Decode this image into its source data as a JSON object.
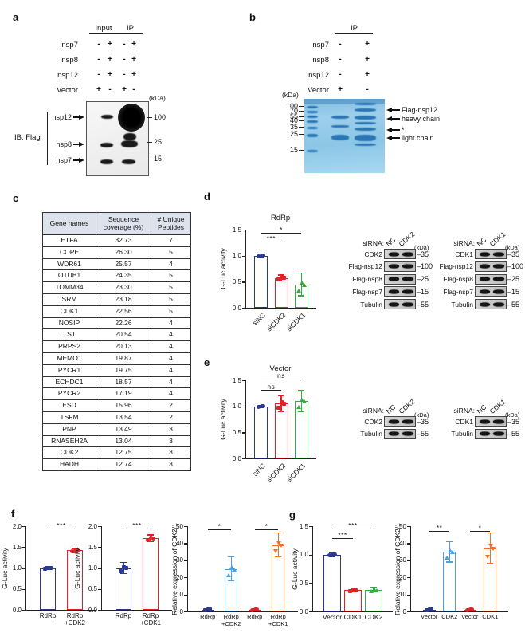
{
  "colors": {
    "navy": "#2b3a90",
    "red": "#e32026",
    "green": "#3aa845",
    "light_blue": "#4f9fd8",
    "orange": "#f0712c"
  },
  "panels": {
    "a": {
      "label": "a",
      "col_groups": [
        "Input",
        "IP"
      ],
      "condition_rows": [
        {
          "label": "nsp7",
          "signs": [
            "-",
            "+",
            "-",
            "+"
          ]
        },
        {
          "label": "nsp8",
          "signs": [
            "-",
            "+",
            "-",
            "+"
          ]
        },
        {
          "label": "nsp12",
          "signs": [
            "-",
            "+",
            "-",
            "+"
          ]
        },
        {
          "label": "Vector",
          "signs": [
            "+",
            "-",
            "+",
            "-"
          ]
        }
      ],
      "kda_label": "(kDa)",
      "markers": [
        "100",
        "25",
        "15"
      ],
      "band_arrows": [
        "nsp12",
        "nsp8",
        "nsp7"
      ],
      "ib_label": "IB: Flag"
    },
    "b": {
      "label": "b",
      "col_group": "IP",
      "condition_rows": [
        {
          "label": "nsp7",
          "signs": [
            "-",
            "+"
          ]
        },
        {
          "label": "nsp8",
          "signs": [
            "-",
            "+"
          ]
        },
        {
          "label": "nsp12",
          "signs": [
            "-",
            "+"
          ]
        },
        {
          "label": "Vector",
          "signs": [
            "+",
            "-"
          ]
        }
      ],
      "kda_label": "(kDa)",
      "markers": [
        "100",
        "70",
        "55",
        "40",
        "35",
        "25",
        "15"
      ],
      "arrow_labels": [
        "Flag-nsp12",
        "heavy chain",
        "*",
        "light chain"
      ]
    },
    "c": {
      "label": "c",
      "table": {
        "headers": [
          "Gene names",
          "Sequence\ncoverage (%)",
          "# Unique\nPeptides"
        ],
        "rows": [
          [
            "ETFA",
            "32.73",
            "7"
          ],
          [
            "COPE",
            "26.30",
            "5"
          ],
          [
            "WDR61",
            "25.57",
            "4"
          ],
          [
            "OTUB1",
            "24.35",
            "5"
          ],
          [
            "TOMM34",
            "23.30",
            "5"
          ],
          [
            "SRM",
            "23.18",
            "5"
          ],
          [
            "CDK1",
            "22.56",
            "5"
          ],
          [
            "NOSIP",
            "22.26",
            "4"
          ],
          [
            "TST",
            "20.54",
            "4"
          ],
          [
            "PRPS2",
            "20.13",
            "4"
          ],
          [
            "MEMO1",
            "19.87",
            "4"
          ],
          [
            "PYCR1",
            "19.75",
            "4"
          ],
          [
            "ECHDC1",
            "18.57",
            "4"
          ],
          [
            "PYCR2",
            "17.19",
            "4"
          ],
          [
            "ESD",
            "15.96",
            "2"
          ],
          [
            "TSFM",
            "13.54",
            "2"
          ],
          [
            "PNP",
            "13.49",
            "3"
          ],
          [
            "RNASEH2A",
            "13.04",
            "3"
          ],
          [
            "CDK2",
            "12.75",
            "3"
          ],
          [
            "HADH",
            "12.74",
            "3"
          ]
        ]
      }
    },
    "d": {
      "label": "d",
      "chart": {
        "type": "bar",
        "title": "RdRp",
        "ylabel": "G-Luc  activity",
        "ylim": [
          0,
          1.5
        ],
        "yticks": [
          "0.0",
          "0.5",
          "1.0",
          "1.5"
        ],
        "categories": [
          "siNC",
          "siCDK2",
          "siCDK1"
        ],
        "values": [
          1.0,
          0.57,
          0.45
        ],
        "errors": [
          0.03,
          0.06,
          0.22
        ],
        "colors": [
          "#2b3a90",
          "#e32026",
          "#3aa845"
        ],
        "point_shapes": [
          "circle",
          "square",
          "tri"
        ],
        "sig": [
          {
            "a": 0,
            "b": 1,
            "stars": "***",
            "y": 1.27
          },
          {
            "a": 0,
            "b": 2,
            "stars": "*",
            "y": 1.44
          }
        ]
      },
      "blots": [
        {
          "sirna_label": "siRNA:",
          "lanes": [
            "NC",
            "CDK2"
          ],
          "kda_label": "(kDa)",
          "rows": [
            {
              "label": "CDK2",
              "marker": "35",
              "bands": [
                0.85,
                0.35
              ]
            },
            {
              "label": "Flag-nsp12",
              "marker": "100",
              "bands": [
                0.45,
                0.6
              ]
            },
            {
              "label": "Flag-nsp8",
              "marker": "25",
              "bands": [
                0.9,
                0.9
              ]
            },
            {
              "label": "Flag-nsp7",
              "marker": "15",
              "bands": [
                0.95,
                0.95
              ]
            },
            {
              "label": "Tubulin",
              "marker": "55",
              "bands": [
                0.95,
                0.95
              ]
            }
          ]
        },
        {
          "sirna_label": "siRNA:",
          "lanes": [
            "NC",
            "CDK1"
          ],
          "kda_label": "(kDa)",
          "rows": [
            {
              "label": "CDK1",
              "marker": "35",
              "bands": [
                0.8,
                0.08
              ]
            },
            {
              "label": "Flag-nsp12",
              "marker": "100",
              "bands": [
                0.35,
                0.3
              ]
            },
            {
              "label": "Flag-nsp8",
              "marker": "25",
              "bands": [
                0.85,
                0.85
              ]
            },
            {
              "label": "Flag-nsp7",
              "marker": "15",
              "bands": [
                0.95,
                0.9
              ]
            },
            {
              "label": "Tubulin",
              "marker": "55",
              "bands": [
                0.95,
                0.95
              ]
            }
          ]
        }
      ]
    },
    "e": {
      "label": "e",
      "chart": {
        "type": "bar",
        "title": "Vector",
        "ylabel": "G-Luc activity",
        "ylim": [
          0,
          1.5
        ],
        "yticks": [
          "0.0",
          "0.5",
          "1.0",
          "1.5"
        ],
        "categories": [
          "siNC",
          "siCDK2",
          "siCDK1"
        ],
        "values": [
          1.0,
          1.05,
          1.1
        ],
        "errors": [
          0.02,
          0.15,
          0.2
        ],
        "colors": [
          "#2b3a90",
          "#e32026",
          "#3aa845"
        ],
        "point_shapes": [
          "circle",
          "square",
          "tri"
        ],
        "sig": [
          {
            "a": 0,
            "b": 1,
            "stars": "ns",
            "y": 1.31
          },
          {
            "a": 0,
            "b": 2,
            "stars": "ns",
            "y": 1.53
          }
        ]
      },
      "blots": [
        {
          "sirna_label": "siRNA:",
          "lanes": [
            "NC",
            "CDK2"
          ],
          "kda_label": "(kDa)",
          "rows": [
            {
              "label": "CDK2",
              "marker": "35",
              "bands": [
                0.9,
                0.45
              ]
            },
            {
              "label": "Tubulin",
              "marker": "55",
              "bands": [
                0.95,
                0.95
              ]
            }
          ]
        },
        {
          "sirna_label": "siRNA:",
          "lanes": [
            "NC",
            "CDK1"
          ],
          "kda_label": "(kDa)",
          "rows": [
            {
              "label": "CDK1",
              "marker": "35",
              "bands": [
                0.75,
                0.06
              ]
            },
            {
              "label": "Tubulin",
              "marker": "55",
              "bands": [
                0.95,
                0.95
              ]
            }
          ]
        }
      ]
    },
    "f": {
      "label": "f",
      "charts": [
        {
          "type": "bar",
          "title": "",
          "ylabel": "G-Luc activity",
          "ylim": [
            0,
            2.0
          ],
          "yticks": [
            "0.0",
            "0.5",
            "1.0",
            "1.5",
            "2.0"
          ],
          "categories": [
            "RdRp",
            "RdRp\n+CDK2"
          ],
          "values": [
            1.0,
            1.42
          ],
          "errors": [
            0.04,
            0.05
          ],
          "colors": [
            "#2b3a90",
            "#e32026"
          ],
          "point_shapes": [
            "square",
            "circle"
          ],
          "sig": [
            {
              "a": 0,
              "b": 1,
              "stars": "***",
              "y": 1.95
            }
          ]
        },
        {
          "type": "bar",
          "title": "",
          "ylabel": "G-Luc activity",
          "ylim": [
            0,
            2.0
          ],
          "yticks": [
            "0.0",
            "0.5",
            "1.0",
            "1.5",
            "2.0"
          ],
          "categories": [
            "RdRp",
            "RdRp\n+CDK1"
          ],
          "values": [
            1.0,
            1.71
          ],
          "errors": [
            0.13,
            0.08
          ],
          "colors": [
            "#2b3a90",
            "#e32026"
          ],
          "point_shapes": [
            "square",
            "circle"
          ],
          "sig": [
            {
              "a": 0,
              "b": 1,
              "stars": "***",
              "y": 1.95
            }
          ]
        },
        {
          "type": "bar",
          "title": "",
          "ylabel": "Relative expression of CDK2/1",
          "ylim": [
            0,
            50
          ],
          "yticks": [
            "0",
            "10",
            "20",
            "30",
            "40",
            "50"
          ],
          "categories": [
            "RdRp",
            "RdRp\n+CDK2",
            "RdRp",
            "RdRp\n+CDK1"
          ],
          "values": [
            1,
            25,
            1,
            39
          ],
          "errors": [
            0.8,
            7,
            0.8,
            7
          ],
          "colors": [
            "#2b3a90",
            "#4f9fd8",
            "#e32026",
            "#f0712c"
          ],
          "point_shapes": [
            "square",
            "tri",
            "circle",
            "tridown"
          ],
          "sig": [
            {
              "a": 0,
              "b": 1,
              "stars": "*",
              "y": 48
            },
            {
              "a": 2,
              "b": 3,
              "stars": "*",
              "y": 48
            }
          ]
        }
      ]
    },
    "g": {
      "label": "g",
      "charts": [
        {
          "type": "bar",
          "title": "",
          "ylabel": "G-Luc  activity",
          "ylim": [
            0,
            1.5
          ],
          "yticks": [
            "0.0",
            "0.5",
            "1.0",
            "1.5"
          ],
          "categories": [
            "Vector",
            "CDK1",
            "CDK2"
          ],
          "values": [
            1.0,
            0.38,
            0.38
          ],
          "errors": [
            0.03,
            0.03,
            0.04
          ],
          "colors": [
            "#2b3a90",
            "#e32026",
            "#3aa845"
          ],
          "point_shapes": [
            "circle",
            "square",
            "tri"
          ],
          "sig": [
            {
              "a": 0,
              "b": 1,
              "stars": "***",
              "y": 1.29
            },
            {
              "a": 0,
              "b": 2,
              "stars": "***",
              "y": 1.46
            }
          ]
        },
        {
          "type": "bar",
          "title": "",
          "ylabel": "Relative expression of CDK2/1",
          "ylim": [
            0,
            50
          ],
          "yticks": [
            "0",
            "10",
            "20",
            "30",
            "40",
            "50"
          ],
          "categories": [
            "Vector",
            "CDK2",
            "Vector",
            "CDK1"
          ],
          "values": [
            1,
            35,
            1,
            37
          ],
          "errors": [
            0.8,
            6,
            0.8,
            9
          ],
          "colors": [
            "#2b3a90",
            "#4f9fd8",
            "#e32026",
            "#f0712c"
          ],
          "point_shapes": [
            "square",
            "tri",
            "circle",
            "tridown"
          ],
          "sig": [
            {
              "a": 0,
              "b": 1,
              "stars": "**",
              "y": 47
            },
            {
              "a": 2,
              "b": 3,
              "stars": "*",
              "y": 47
            }
          ]
        }
      ]
    }
  }
}
